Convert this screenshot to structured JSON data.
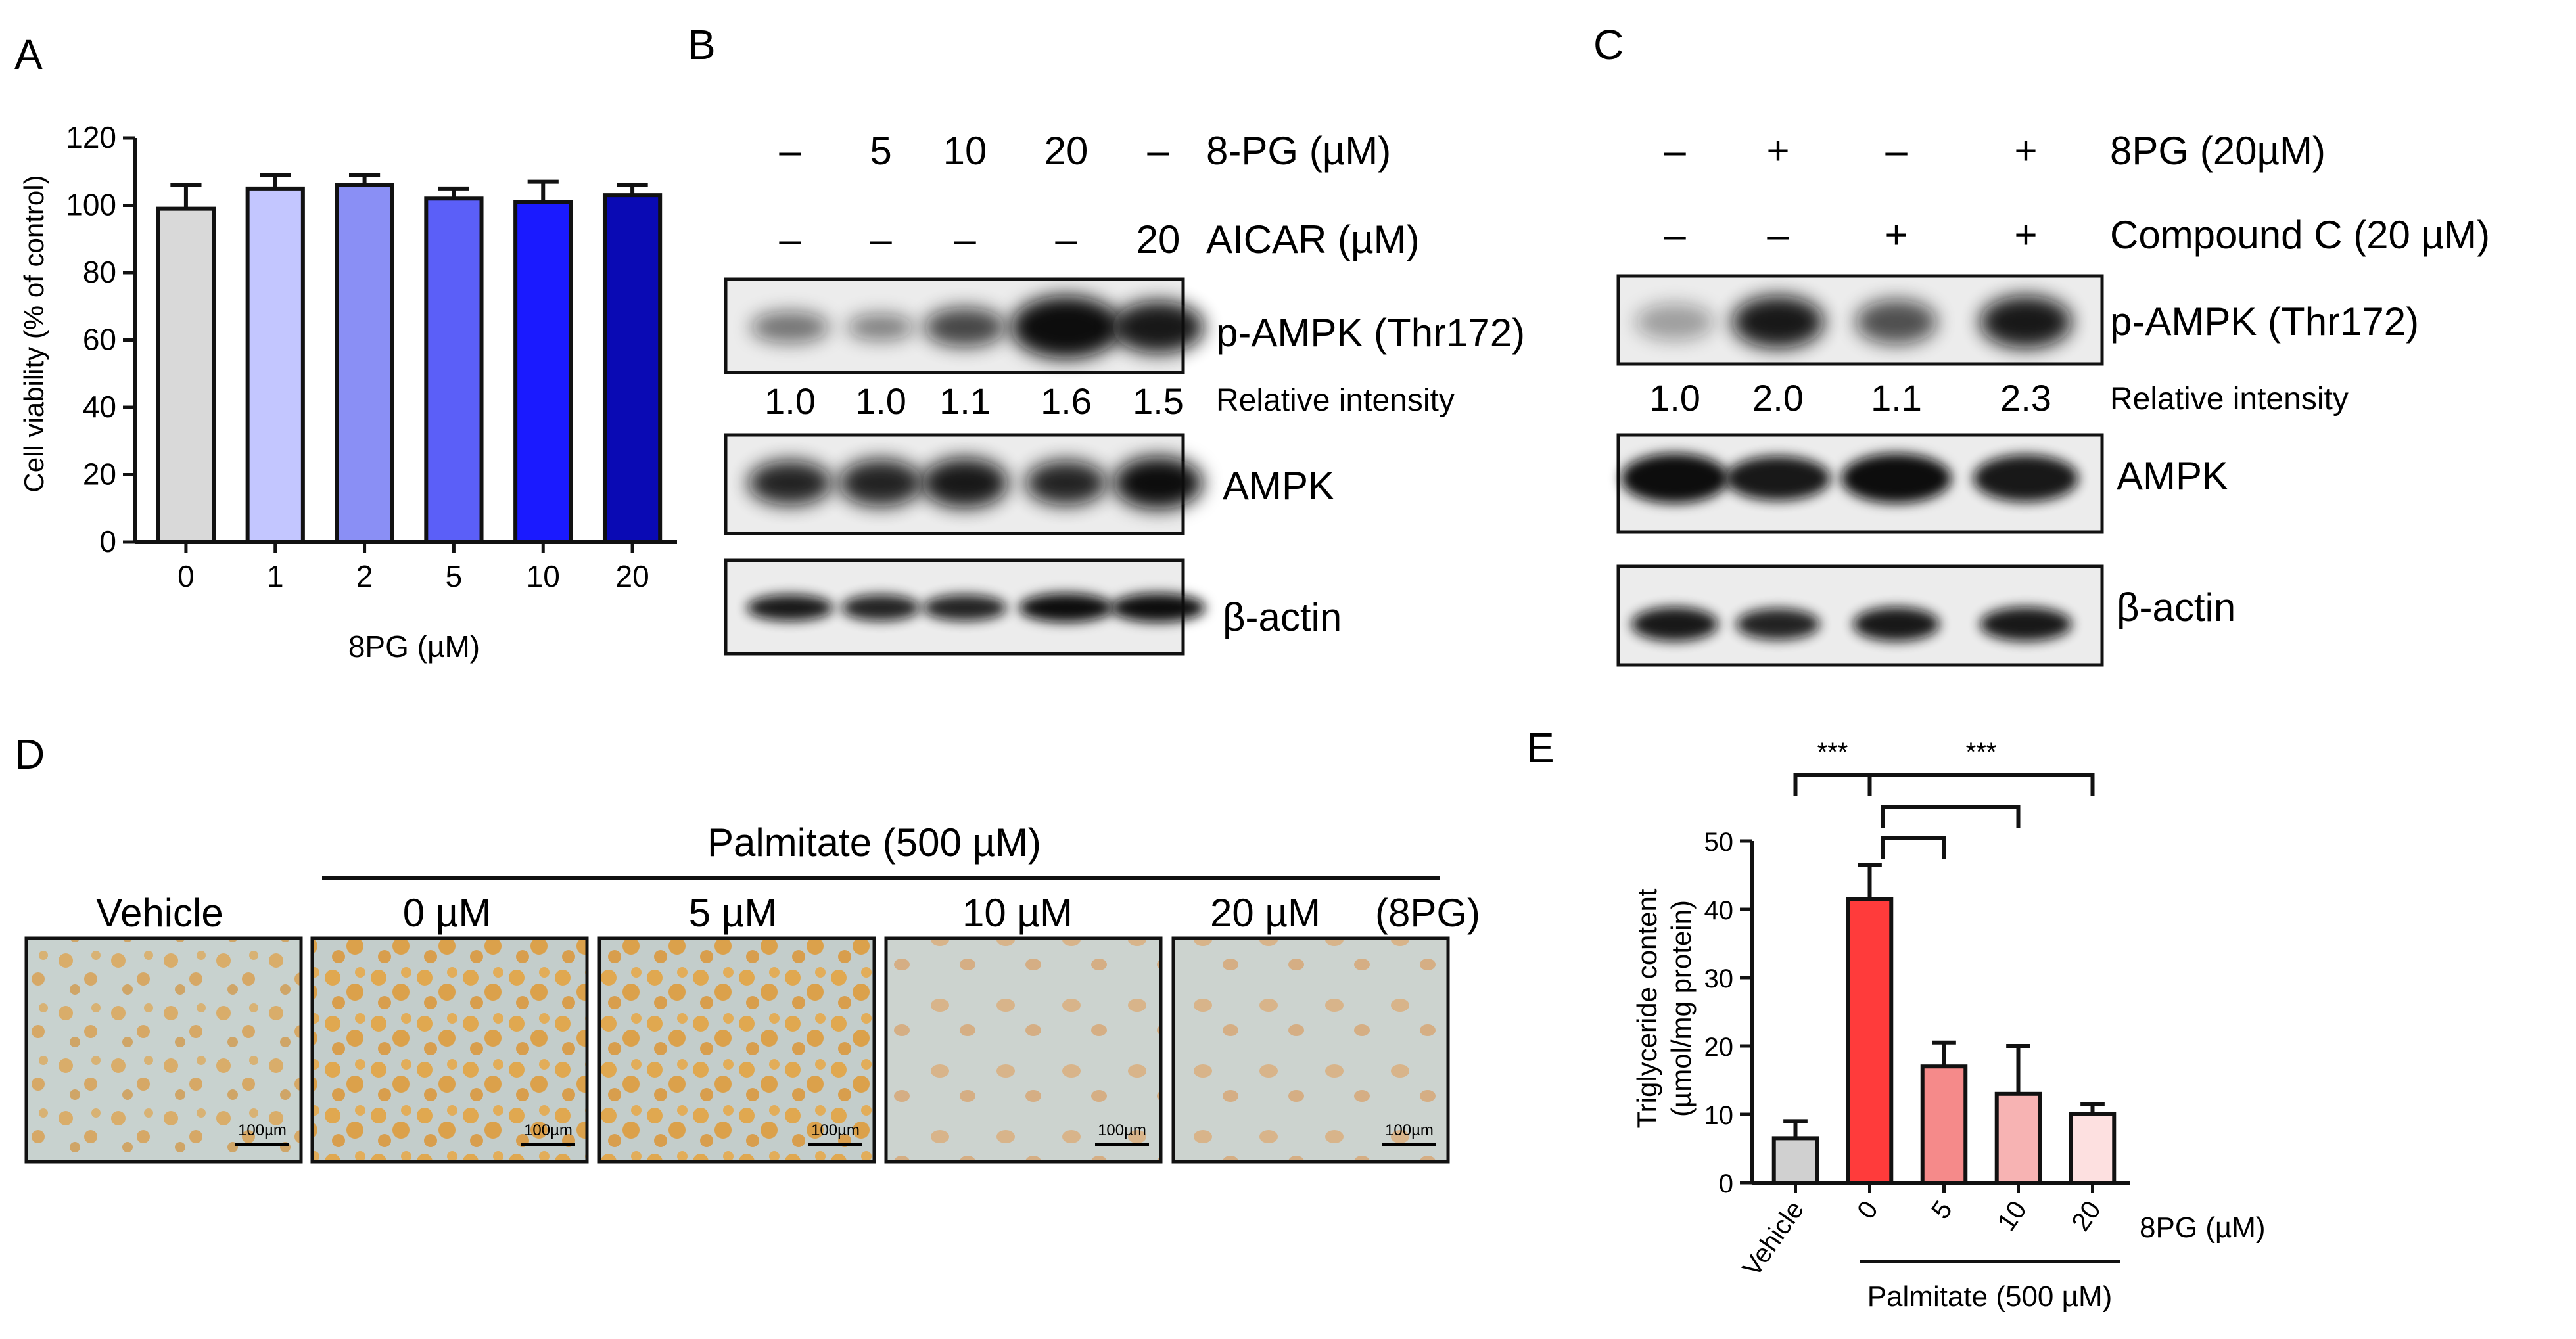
{
  "panels": {
    "A": {
      "letter": "A",
      "chart_data": {
        "type": "bar",
        "categories": [
          "0",
          "1",
          "2",
          "5",
          "10",
          "20"
        ],
        "values": [
          99,
          105,
          106,
          102,
          101,
          103
        ],
        "errors": [
          7,
          4,
          3,
          3,
          6,
          3
        ],
        "colors": [
          "#d9d9d9",
          "#c3c6ff",
          "#8a8ff5",
          "#5b5ff8",
          "#1a1aff",
          "#0a0ab4"
        ],
        "xlabel": "8PG (µM)",
        "ylabel": "Cell viability (% of control)",
        "ylim": [
          0,
          120
        ],
        "yticks": [
          0,
          20,
          40,
          60,
          80,
          100,
          120
        ]
      }
    },
    "B": {
      "letter": "B",
      "row1": {
        "cells": [
          "–",
          "5",
          "10",
          "20",
          "–"
        ],
        "label": "8-PG  (µM)"
      },
      "row2": {
        "cells": [
          "–",
          "–",
          "–",
          "–",
          "20"
        ],
        "label": "AICAR (µM)"
      },
      "bands": [
        "p-AMPK (Thr172)",
        "AMPK",
        "β-actin"
      ],
      "intensity": [
        "1.0",
        "1.0",
        "1.1",
        "1.6",
        "1.5"
      ],
      "intensity_label": "Relative  intensity"
    },
    "C": {
      "letter": "C",
      "row1": {
        "cells": [
          "–",
          "+",
          "–",
          "+"
        ],
        "label": "8PG (20µM)"
      },
      "row2": {
        "cells": [
          "–",
          "–",
          "+",
          "+"
        ],
        "label": "Compound C (20 µM)"
      },
      "bands": [
        "p-AMPK (Thr172)",
        "AMPK",
        "β-actin"
      ],
      "intensity": [
        "1.0",
        "2.0",
        "1.1",
        "2.3"
      ],
      "intensity_label": "Relative  intensity"
    },
    "D": {
      "letter": "D",
      "header": "Palmitate (500 µM)",
      "labels": [
        "Vehicle",
        "0 µM",
        "5 µM",
        "10 µM",
        "20 µM"
      ],
      "suffix": "(8PG)",
      "scale_bar": "100µm"
    },
    "E": {
      "letter": "E",
      "chart_data": {
        "type": "bar",
        "categories": [
          "Vehicle",
          "0",
          "5",
          "10",
          "20"
        ],
        "values": [
          6.5,
          41.5,
          17,
          13,
          10
        ],
        "errors": [
          2.5,
          5,
          3.5,
          7,
          1.5
        ],
        "colors": [
          "#d0d0d0",
          "#ff3b3b",
          "#f58a8a",
          "#f7b3b3",
          "#fde0e0"
        ],
        "ylabel_line1": "Triglyceride content",
        "ylabel_line2": "(µmol/mg protein)",
        "ylim": [
          0,
          50
        ],
        "yticks": [
          0,
          10,
          20,
          30,
          40,
          50
        ],
        "xunit": "8PG (µM)",
        "group_label": "Palmitate (500 µM)",
        "significance": [
          "***",
          "***"
        ]
      }
    }
  }
}
